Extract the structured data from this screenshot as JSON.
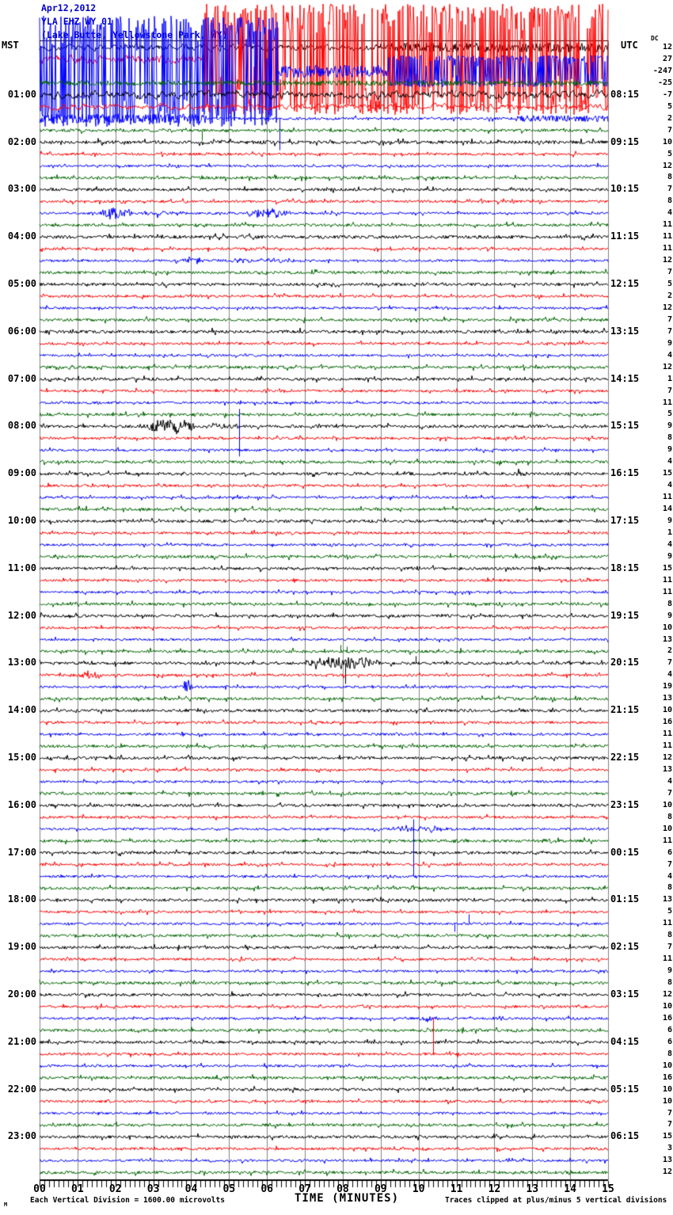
{
  "header": {
    "date": "Apr12,2012",
    "station_id": "YLA EHZ WY 01",
    "station_name": "(Lake Butte, Yellowstone Park, WY)",
    "left_timezone": "MST",
    "right_timezone": "UTC",
    "dc_column_label": "DC"
  },
  "footer": {
    "scale_note": "Each Vertical Division = 1600.00 microvolts",
    "x_axis_title": "TIME (MINUTES)",
    "clip_note": "Traces clipped at plus/minus 5 vertical divisions",
    "corner_mark": "M"
  },
  "left_times": [
    "01:00",
    "02:00",
    "03:00",
    "04:00",
    "05:00",
    "06:00",
    "07:00",
    "08:00",
    "09:00",
    "10:00",
    "11:00",
    "12:00",
    "13:00",
    "14:00",
    "15:00",
    "16:00",
    "17:00",
    "18:00",
    "19:00",
    "20:00",
    "21:00",
    "22:00",
    "23:00"
  ],
  "right_times": [
    "08:15",
    "09:15",
    "10:15",
    "11:15",
    "12:15",
    "13:15",
    "14:15",
    "15:15",
    "16:15",
    "17:15",
    "18:15",
    "19:15",
    "20:15",
    "21:15",
    "22:15",
    "23:15",
    "00:15",
    "01:15",
    "02:15",
    "03:15",
    "04:15",
    "05:15",
    "06:15"
  ],
  "x_axis": {
    "ticks": [
      "00",
      "01",
      "02",
      "03",
      "04",
      "05",
      "06",
      "07",
      "08",
      "09",
      "10",
      "11",
      "12",
      "13",
      "14",
      "15"
    ]
  },
  "chart_data": {
    "type": "line",
    "subtype": "helicorder-seismogram",
    "title": "YLA EHZ WY 01 (Lake Butte, Yellowstone Park, WY) Apr12,2012",
    "xlabel": "TIME (MINUTES)",
    "x_range_minutes": [
      0,
      15
    ],
    "minutes_per_row": 15,
    "num_rows": 96,
    "row_start_mst": "00:00",
    "vertical_division_microvolts": 1600.0,
    "clip_divisions": 5,
    "trace_color_cycle": [
      "#000000",
      "#ff0000",
      "#0000ff",
      "#006600"
    ],
    "grid_color": "#808080",
    "title_color": "#0000cc",
    "dc_offsets": [
      12,
      27,
      -247,
      -25,
      -7,
      5,
      2,
      7,
      10,
      5,
      12,
      8,
      7,
      8,
      4,
      11,
      11,
      11,
      12,
      7,
      5,
      2,
      12,
      7,
      7,
      9,
      4,
      12,
      1,
      7,
      11,
      5,
      9,
      8,
      9,
      4,
      15,
      4,
      11,
      14,
      9,
      1,
      4,
      9,
      15,
      11,
      11,
      8,
      9,
      10,
      13,
      2,
      7,
      4,
      19,
      13,
      10,
      16,
      11,
      11,
      12,
      13,
      4,
      7,
      10,
      8,
      10,
      11,
      6,
      7,
      4,
      8,
      13,
      5,
      11,
      8,
      7,
      11,
      9,
      8,
      12,
      10,
      16,
      6,
      6,
      8,
      10,
      16,
      10,
      10,
      7,
      7,
      15,
      3,
      13,
      12
    ],
    "noise_default_amp": {
      "#000000": 1.8,
      "#ff0000": 1.6,
      "#0000ff": 1.5,
      "#006600": 1.8
    },
    "noise_overrides": [
      {
        "row": 0,
        "segments": [
          [
            0,
            9,
            3.2,
            "wiggle"
          ],
          [
            9,
            15,
            6,
            "fuzz"
          ]
        ]
      },
      {
        "row": 1,
        "segments": [
          [
            0,
            4.35,
            4,
            "wiggle"
          ],
          [
            4.35,
            15,
            70,
            "dense"
          ]
        ]
      },
      {
        "row": 2,
        "segments": [
          [
            0,
            6.3,
            70,
            "dense"
          ],
          [
            6.3,
            9.2,
            8,
            "fuzz"
          ],
          [
            9.2,
            15,
            20,
            "dense"
          ]
        ]
      },
      {
        "row": 3,
        "segments": [
          [
            0,
            15,
            3.2,
            "fuzz"
          ]
        ]
      },
      {
        "row": 4,
        "segments": [
          [
            0,
            15,
            3.4,
            "wiggle"
          ]
        ]
      },
      {
        "row": 5,
        "segments": [
          [
            0,
            15,
            2.6,
            "wiggle"
          ]
        ]
      },
      {
        "row": 6,
        "segments": [
          [
            0,
            4.4,
            6,
            "fuzz"
          ],
          [
            4.4,
            12.6,
            1.6,
            "calm"
          ],
          [
            12.6,
            15,
            4,
            "fuzz"
          ]
        ]
      },
      {
        "row": 8,
        "segments": [
          [
            0,
            15,
            2.1,
            "calm"
          ]
        ]
      },
      {
        "row": 16,
        "segments": [
          [
            0,
            15,
            2.0,
            "calm"
          ]
        ]
      },
      {
        "row": 24,
        "segments": [
          [
            0,
            15,
            2.0,
            "calm"
          ]
        ]
      }
    ],
    "bursts": [
      [
        14,
        1.55,
        2.5,
        7
      ],
      [
        14,
        2.5,
        3.9,
        3
      ],
      [
        14,
        5.35,
        6.65,
        6
      ],
      [
        18,
        3.75,
        4.35,
        5
      ],
      [
        18,
        4.35,
        7.5,
        2.2
      ],
      [
        32,
        2.6,
        4.3,
        8
      ],
      [
        32,
        4.3,
        5.6,
        3
      ],
      [
        36,
        12.5,
        13.0,
        3.5
      ],
      [
        52,
        7.0,
        9.15,
        8
      ],
      [
        53,
        0.95,
        1.8,
        3.5
      ],
      [
        54,
        3.75,
        4.05,
        8
      ],
      [
        66,
        9.05,
        11.0,
        3.5
      ],
      [
        67,
        12.95,
        13.7,
        2.5
      ],
      [
        82,
        9.95,
        10.65,
        2.5
      ]
    ],
    "spikes": [
      [
        6,
        6.32,
        -40
      ],
      [
        7,
        4.28,
        -13
      ],
      [
        34,
        5.27,
        52
      ],
      [
        34,
        5.27,
        -8
      ],
      [
        51,
        7.93,
        8
      ],
      [
        51,
        8.1,
        6
      ],
      [
        52,
        8.07,
        -26
      ],
      [
        52,
        9.92,
        9
      ],
      [
        70,
        9.86,
        72
      ],
      [
        74,
        10.95,
        -10
      ],
      [
        74,
        11.32,
        12
      ],
      [
        85,
        10.38,
        46
      ]
    ]
  }
}
